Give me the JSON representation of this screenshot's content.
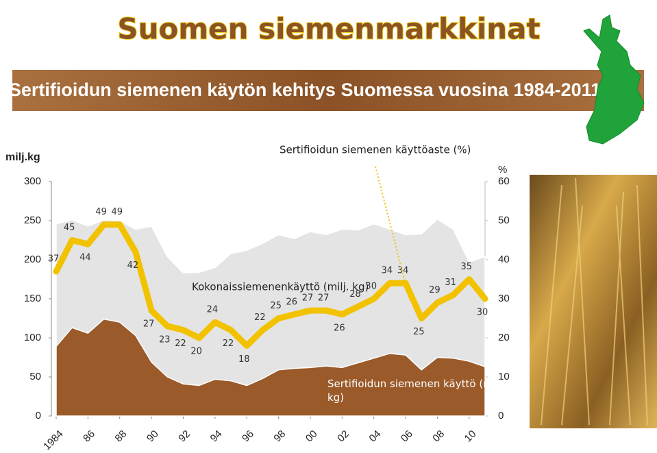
{
  "title": "Suomen siemenmarkkinat",
  "subtitle": "Sertifioidun siemenen käytön kehitys Suomessa vuosina 1984-2011",
  "chart_data": {
    "type": "line",
    "y_label": "milj.kg",
    "y2_label": "%",
    "x": [
      1984,
      1985,
      1986,
      1987,
      1988,
      1989,
      1990,
      1991,
      1992,
      1993,
      1994,
      1995,
      1996,
      1997,
      1998,
      1999,
      2000,
      2001,
      2002,
      2003,
      2004,
      2005,
      2006,
      2007,
      2008,
      2009,
      2010,
      2011
    ],
    "xlim": [
      1984,
      2011
    ],
    "xticks": [
      1984,
      {
        "value": 1986,
        "label": "86"
      },
      {
        "value": 1988,
        "label": "88"
      },
      {
        "value": 1990,
        "label": "90"
      },
      {
        "value": 1992,
        "label": "92"
      },
      {
        "value": 1994,
        "label": "94"
      },
      {
        "value": 1996,
        "label": "96"
      },
      {
        "value": 1998,
        "label": "98"
      },
      {
        "value": 2000,
        "label": "00"
      },
      {
        "value": 2002,
        "label": "02"
      },
      {
        "value": 2004,
        "label": "04"
      },
      {
        "value": 2006,
        "label": "06"
      },
      {
        "value": 2008,
        "label": "08"
      },
      {
        "value": 2010,
        "label": "10"
      }
    ],
    "ylim": [
      0,
      300
    ],
    "yticks": [
      0,
      50,
      100,
      150,
      200,
      250,
      300
    ],
    "y2lim": [
      0,
      60
    ],
    "y2ticks": [
      0,
      10,
      20,
      30,
      40,
      50,
      60
    ],
    "series": [
      {
        "name": "Kokonaissiemenenkäyttö (milj. kg)",
        "type": "area",
        "color": "#e4e4e4",
        "values": [
          246,
          251,
          243,
          251,
          250,
          239,
          243,
          204,
          183,
          184,
          190,
          208,
          212,
          221,
          232,
          227,
          236,
          232,
          239,
          238,
          246,
          239,
          232,
          233,
          252,
          239,
          197,
          204
        ]
      },
      {
        "name": "Sertifioidun siemenen käyttö (milj. kg)",
        "type": "area",
        "color": "#9a5a2a",
        "values": [
          89,
          113,
          106,
          124,
          120,
          103,
          69,
          50,
          41,
          39,
          47,
          45,
          39,
          48,
          59,
          61,
          62,
          64,
          62,
          68,
          74,
          80,
          78,
          59,
          75,
          74,
          70,
          63
        ]
      },
      {
        "name": "Sertifioidun siemenen käyttöaste (%)",
        "type": "line",
        "axis": "y2",
        "color": "#f2c200",
        "values": [
          37,
          45,
          44,
          49,
          49,
          42,
          27,
          23,
          22,
          20,
          24,
          22,
          18,
          22,
          25,
          26,
          27,
          27,
          26,
          28,
          30,
          34,
          34,
          25,
          29,
          31,
          35,
          30
        ]
      }
    ]
  }
}
